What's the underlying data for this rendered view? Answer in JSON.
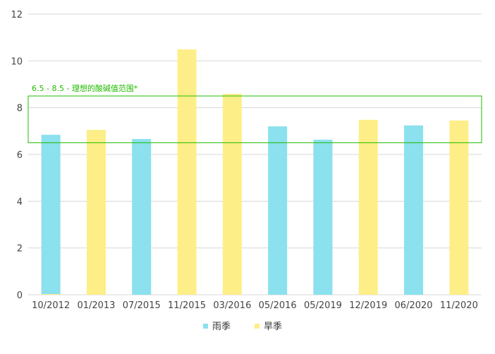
{
  "chart_data": {
    "type": "bar",
    "title": "",
    "xlabel": "",
    "ylabel": "",
    "ylim": [
      0,
      12
    ],
    "yticks": [
      0,
      2,
      4,
      6,
      8,
      10,
      12
    ],
    "grid": true,
    "legend_placement": "bottom",
    "categories": [
      "10/2012",
      "01/2013",
      "07/2015",
      "11/2015",
      "03/2016",
      "05/2016",
      "05/2019",
      "12/2019",
      "06/2020",
      "11/2020"
    ],
    "series": [
      {
        "name": "雨季",
        "color": "#8be1ed",
        "values": [
          6.84,
          null,
          6.66,
          null,
          null,
          7.2,
          6.63,
          null,
          7.24,
          null
        ]
      },
      {
        "name": "旱季",
        "color": "#fdee88",
        "values": [
          0,
          7.05,
          null,
          10.49,
          8.59,
          null,
          null,
          7.48,
          null,
          7.45
        ]
      }
    ],
    "band": {
      "from": 6.5,
      "to": 8.5,
      "label": "6.5 - 8.5 - 理想的酸碱值范围*",
      "color": "#22bb00"
    }
  }
}
